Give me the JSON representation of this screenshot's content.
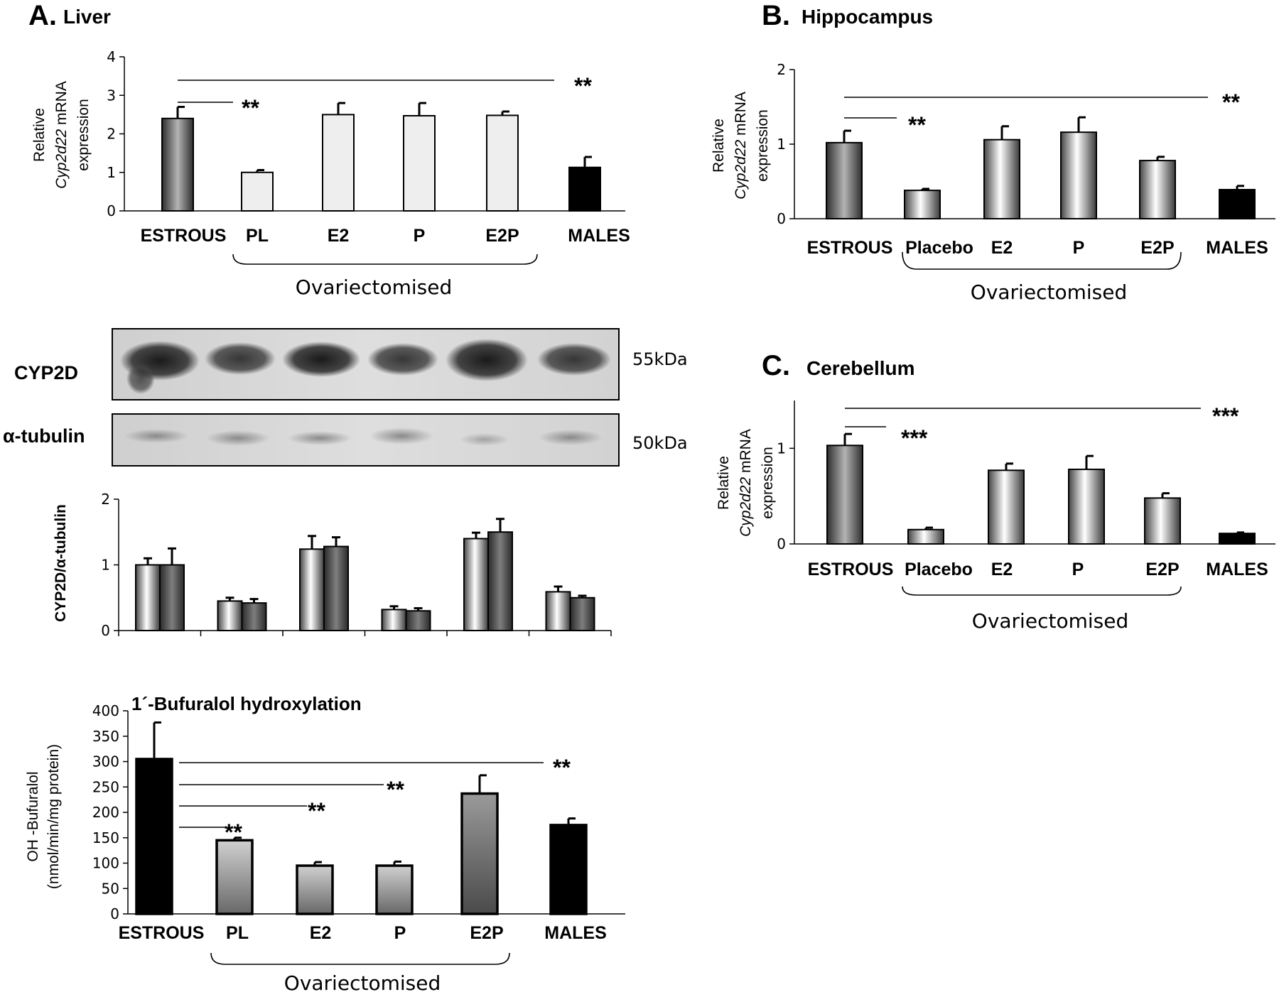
{
  "panels": {
    "A": {
      "letter": "A.",
      "title": "Liver"
    },
    "B": {
      "letter": "B.",
      "title": "Hippocampus"
    },
    "C": {
      "letter": "C.",
      "title": "Cerebellum"
    }
  },
  "ylabels": {
    "relative": "Relative",
    "gene": "Cyp2d22",
    "mrna": " mRNA",
    "expression": "expression",
    "cyp2d_ratio": "CYP2D/α-tubulin",
    "bufuralol_line1": "OH -Bufuralol",
    "bufuralol_line2": "(nmol/min/mg protein)"
  },
  "group_label": "Ovariectomised",
  "blot": {
    "cyp2d_label": "CYP2D",
    "tubulin_label": "α-tubulin",
    "cyp2d_kda": "55kDa",
    "tubulin_kda": "50kDa"
  },
  "colors": {
    "light_bar": "#eeeeee",
    "black_bar": "#000000",
    "dark_gray": "#444444"
  },
  "chart_data": [
    {
      "id": "liver_mrna",
      "type": "bar",
      "categories": [
        "ESTROUS",
        "PL",
        "E2",
        "P",
        "E2P",
        "MALES"
      ],
      "values": [
        2.4,
        1.0,
        2.5,
        2.47,
        2.48,
        1.13
      ],
      "errors": [
        0.3,
        0.06,
        0.3,
        0.33,
        0.1,
        0.27
      ],
      "ylim": [
        0,
        4
      ],
      "yticks": [
        "0",
        "1",
        "2",
        "3",
        "4"
      ],
      "significance": [
        {
          "label": "**",
          "from": "ESTROUS",
          "to": "PL"
        },
        {
          "label": "**",
          "from": "ESTROUS",
          "to": "MALES"
        }
      ]
    },
    {
      "id": "liver_cyp2d_protein",
      "type": "bar",
      "series": [
        {
          "values": [
            1.0,
            0.45,
            1.24,
            0.32,
            1.4,
            0.59
          ],
          "errors": [
            0.1,
            0.05,
            0.2,
            0.05,
            0.09,
            0.08
          ]
        },
        {
          "values": [
            1.0,
            0.42,
            1.28,
            0.3,
            1.5,
            0.5
          ],
          "errors": [
            0.25,
            0.06,
            0.14,
            0.04,
            0.2,
            0.03
          ]
        }
      ],
      "ylim": [
        0,
        2
      ],
      "yticks": [
        "0",
        "1",
        "2"
      ]
    },
    {
      "id": "liver_bufuralol",
      "type": "bar",
      "title": "1´-Bufuralol hydroxylation",
      "categories": [
        "ESTROUS",
        "PL",
        "E2",
        "P",
        "E2P",
        "MALES"
      ],
      "values": [
        305,
        145,
        95,
        95,
        237,
        175
      ],
      "errors": [
        72,
        5,
        7,
        8,
        36,
        13
      ],
      "ylim": [
        0,
        400
      ],
      "yticks": [
        "0",
        "50",
        "100",
        "150",
        "200",
        "250",
        "300",
        "350",
        "400"
      ],
      "significance": [
        {
          "label": "**",
          "from": "ESTROUS",
          "to": "PL"
        },
        {
          "label": "**",
          "from": "ESTROUS",
          "to": "E2"
        },
        {
          "label": "**",
          "from": "ESTROUS",
          "to": "P"
        },
        {
          "label": "**",
          "from": "ESTROUS",
          "to": "MALES"
        }
      ]
    },
    {
      "id": "hippocampus_mrna",
      "type": "bar",
      "categories": [
        "ESTROUS",
        "Placebo",
        "E2",
        "P",
        "E2P",
        "MALES"
      ],
      "values": [
        1.02,
        0.38,
        1.06,
        1.16,
        0.78,
        0.39
      ],
      "errors": [
        0.16,
        0.02,
        0.18,
        0.2,
        0.05,
        0.05
      ],
      "ylim": [
        0,
        2
      ],
      "yticks": [
        "0",
        "1",
        "2"
      ],
      "significance": [
        {
          "label": "**",
          "from": "ESTROUS",
          "to": "Placebo"
        },
        {
          "label": "**",
          "from": "ESTROUS",
          "to": "MALES"
        }
      ]
    },
    {
      "id": "cerebellum_mrna",
      "type": "bar",
      "categories": [
        "ESTROUS",
        "Placebo",
        "E2",
        "P",
        "E2P",
        "MALES"
      ],
      "values": [
        1.03,
        0.15,
        0.77,
        0.78,
        0.48,
        0.11
      ],
      "errors": [
        0.12,
        0.02,
        0.07,
        0.14,
        0.05,
        0.01
      ],
      "ylim": [
        0,
        1.5
      ],
      "yticks": [
        "0",
        "1"
      ],
      "significance": [
        {
          "label": "***",
          "from": "ESTROUS",
          "to": "Placebo"
        },
        {
          "label": "***",
          "from": "ESTROUS",
          "to": "MALES"
        }
      ]
    }
  ]
}
